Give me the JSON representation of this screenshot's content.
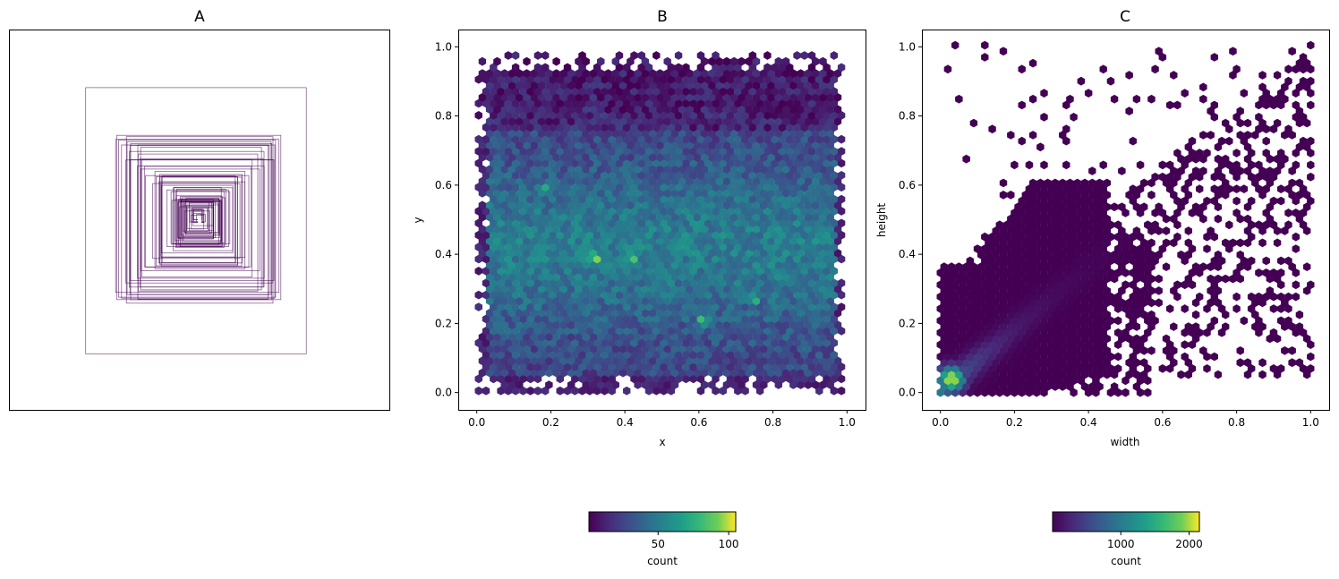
{
  "chart_data": [
    {
      "panel": "A",
      "type": "rectangles",
      "title": "A",
      "center": [
        0.5,
        0.5
      ],
      "edge_color": "#440154",
      "box_size_range": [
        0.0,
        0.58
      ],
      "axes_visible": false
    },
    {
      "panel": "B",
      "type": "heatmap",
      "subtype": "hexbin",
      "title": "B",
      "xlabel": "x",
      "ylabel": "y",
      "xlim": [
        -0.05,
        1.05
      ],
      "ylim": [
        -0.05,
        1.05
      ],
      "xticks": [
        "0.0",
        "0.2",
        "0.4",
        "0.6",
        "0.8",
        "1.0"
      ],
      "yticks": [
        "0.0",
        "0.2",
        "0.4",
        "0.6",
        "0.8",
        "1.0"
      ],
      "hotspots": [
        {
          "x": 0.32,
          "y": 0.39,
          "count": 100
        },
        {
          "x": 0.42,
          "y": 0.39,
          "count": 90
        },
        {
          "x": 0.61,
          "y": 0.21,
          "count": 85
        },
        {
          "x": 0.75,
          "y": 0.27,
          "count": 80
        },
        {
          "x": 0.18,
          "y": 0.59,
          "count": 75
        }
      ],
      "colorbar": {
        "label": "count",
        "ticks": [
          "50",
          "100"
        ],
        "range": [
          1,
          105
        ],
        "cmap": "viridis"
      }
    },
    {
      "panel": "C",
      "type": "heatmap",
      "subtype": "hexbin",
      "title": "C",
      "xlabel": "width",
      "ylabel": "height",
      "xlim": [
        -0.05,
        1.05
      ],
      "ylim": [
        -0.05,
        1.05
      ],
      "xticks": [
        "0.0",
        "0.2",
        "0.4",
        "0.6",
        "0.8",
        "1.0"
      ],
      "yticks": [
        "0.0",
        "0.2",
        "0.4",
        "0.6",
        "0.8",
        "1.0"
      ],
      "peak": {
        "x": 0.03,
        "y": 0.04,
        "count": 2100
      },
      "colorbar": {
        "label": "count",
        "ticks": [
          "1000",
          "2000"
        ],
        "range": [
          1,
          2150
        ],
        "cmap": "viridis"
      }
    }
  ]
}
